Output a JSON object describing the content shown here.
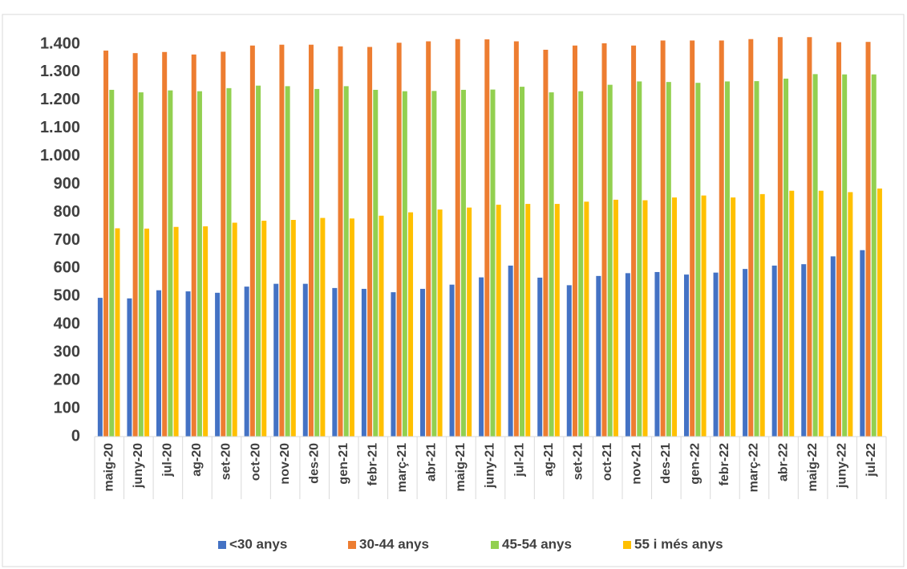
{
  "chart_data": {
    "type": "bar",
    "categories": [
      "maig-20",
      "juny-20",
      "jul-20",
      "ag-20",
      "set-20",
      "oct-20",
      "nov-20",
      "des-20",
      "gen-21",
      "febr-21",
      "març-21",
      "abr-21",
      "maig-21",
      "juny-21",
      "jul-21",
      "ag-21",
      "set-21",
      "oct-21",
      "nov-21",
      "des-21",
      "gen-22",
      "febr-22",
      "març-22",
      "abr-22",
      "maig-22",
      "juny-22",
      "jul-22"
    ],
    "series": [
      {
        "name": "<30 anys",
        "color": "#4472c4",
        "values": [
          495,
          493,
          522,
          518,
          513,
          535,
          545,
          545,
          530,
          527,
          515,
          527,
          542,
          568,
          610,
          567,
          540,
          573,
          583,
          587,
          578,
          585,
          598,
          610,
          615,
          643,
          665
        ]
      },
      {
        "name": "30-44 anys",
        "color": "#ed7d31",
        "values": [
          1377,
          1368,
          1372,
          1363,
          1373,
          1395,
          1398,
          1398,
          1392,
          1390,
          1405,
          1410,
          1418,
          1417,
          1410,
          1380,
          1395,
          1403,
          1395,
          1413,
          1413,
          1413,
          1418,
          1425,
          1425,
          1407,
          1408
        ]
      },
      {
        "name": "45-54 anys",
        "color": "#92d050",
        "values": [
          1237,
          1228,
          1235,
          1232,
          1243,
          1252,
          1250,
          1240,
          1250,
          1237,
          1232,
          1233,
          1237,
          1238,
          1248,
          1228,
          1232,
          1255,
          1267,
          1265,
          1262,
          1267,
          1268,
          1277,
          1293,
          1292,
          1292
        ]
      },
      {
        "name": "55 i més anys",
        "color": "#ffc000",
        "values": [
          743,
          742,
          748,
          750,
          763,
          770,
          773,
          780,
          778,
          788,
          800,
          810,
          817,
          827,
          830,
          830,
          838,
          845,
          843,
          853,
          860,
          853,
          865,
          877,
          877,
          872,
          885
        ]
      }
    ],
    "ylim": [
      0,
      1400
    ],
    "yticks": [
      0,
      100,
      200,
      300,
      400,
      500,
      600,
      700,
      800,
      900,
      {
        "value": 1000,
        "label": "1.000"
      },
      {
        "value": 1100,
        "label": "1.100"
      },
      {
        "value": 1200,
        "label": "1.200"
      },
      {
        "value": 1300,
        "label": "1.300"
      },
      {
        "value": 1400,
        "label": "1.400"
      }
    ],
    "grid": false,
    "legend": "bottom"
  }
}
